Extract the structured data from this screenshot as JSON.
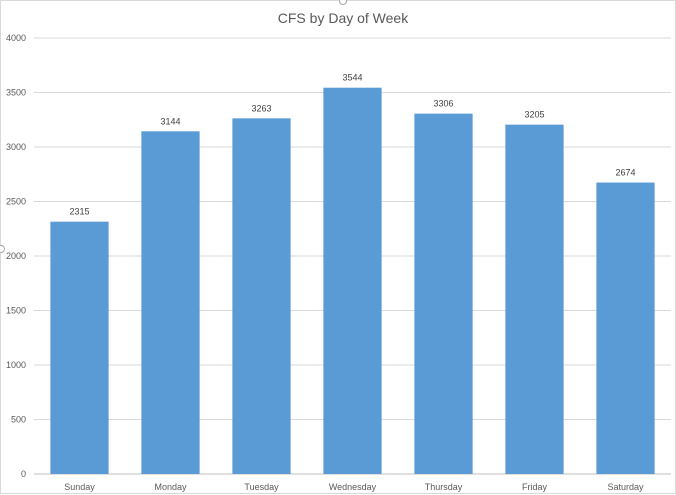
{
  "chart_data": {
    "type": "bar",
    "title": "CFS by Day of Week",
    "xlabel": "",
    "ylabel": "",
    "categories": [
      "Sunday",
      "Monday",
      "Tuesday",
      "Wednesday",
      "Thursday",
      "Friday",
      "Saturday"
    ],
    "values": [
      2315,
      3144,
      3263,
      3544,
      3306,
      3205,
      2674
    ],
    "data_labels": [
      "2315",
      "3144",
      "3263",
      "3544",
      "3306",
      "3205",
      "2674"
    ],
    "ylim": [
      0,
      4000
    ],
    "yticks": [
      0,
      500,
      1000,
      1500,
      2000,
      2500,
      3000,
      3500,
      4000
    ],
    "ytick_labels": [
      "0",
      "500",
      "1000",
      "1500",
      "2000",
      "2500",
      "3000",
      "3500",
      "4000"
    ],
    "grid": true,
    "legend": "none",
    "bar_color": "#5b9bd5",
    "grid_color": "#d9d9d9"
  }
}
